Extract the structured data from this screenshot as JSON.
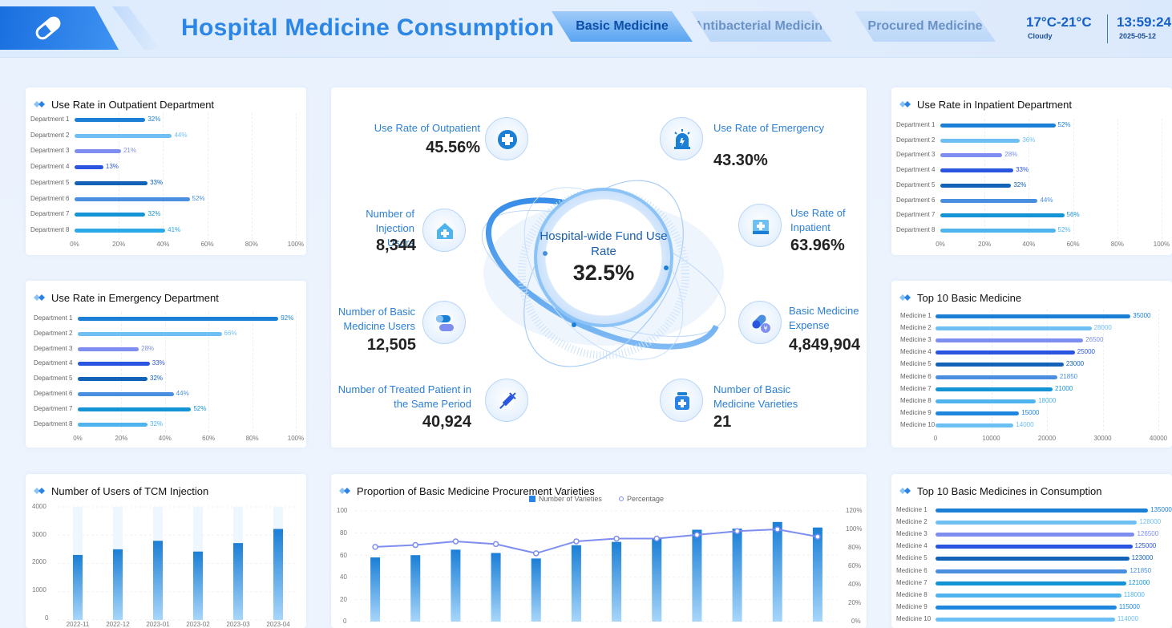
{
  "header": {
    "title": "Hospital Medicine Consumption",
    "tabs": [
      {
        "label": "Basic Medicine",
        "active": true
      },
      {
        "label": "Antibacterial Medicine",
        "active": false
      },
      {
        "label": "Procured Medicine",
        "active": false
      }
    ],
    "weather": {
      "temp": "17°C-21°C",
      "desc": "Cloudy"
    },
    "clock": {
      "time": "13:59:24",
      "date": "2025-05-12"
    }
  },
  "outpatient": {
    "title": "Use Rate in Outpatient Department",
    "rows": [
      {
        "label": "Department 1",
        "value": 32,
        "value_label": "32%",
        "color": "#1b7fd6"
      },
      {
        "label": "Department 2",
        "value": 44,
        "value_label": "44%",
        "color": "#70bff3"
      },
      {
        "label": "Department 3",
        "value": 21,
        "value_label": "21%",
        "color": "#7d8ef0"
      },
      {
        "label": "Department 4",
        "value": 13,
        "value_label": "13%",
        "color": "#2a55e0"
      },
      {
        "label": "Department 5",
        "value": 33,
        "value_label": "33%",
        "color": "#1262b8"
      },
      {
        "label": "Department 6",
        "value": 52,
        "value_label": "52%",
        "color": "#4a8fdf"
      },
      {
        "label": "Department 7",
        "value": 32,
        "value_label": "32%",
        "color": "#1494d4"
      },
      {
        "label": "Department 8",
        "value": 41,
        "value_label": "41%",
        "color": "#2aa9e6"
      }
    ],
    "ticks": [
      "0%",
      "20%",
      "40%",
      "60%",
      "80%",
      "100%"
    ]
  },
  "emergency": {
    "title": "Use Rate in Emergency Department",
    "rows": [
      {
        "label": "Department 1",
        "value": 92,
        "value_label": "92%",
        "color": "#1b7fd6"
      },
      {
        "label": "Department 2",
        "value": 66,
        "value_label": "66%",
        "color": "#70bff3"
      },
      {
        "label": "Department 3",
        "value": 28,
        "value_label": "28%",
        "color": "#7d8ef0"
      },
      {
        "label": "Department 4",
        "value": 33,
        "value_label": "33%",
        "color": "#2a55e0"
      },
      {
        "label": "Department 5",
        "value": 32,
        "value_label": "32%",
        "color": "#1262b8"
      },
      {
        "label": "Department 6",
        "value": 44,
        "value_label": "44%",
        "color": "#4a8fdf"
      },
      {
        "label": "Department 7",
        "value": 52,
        "value_label": "52%",
        "color": "#1494d4"
      },
      {
        "label": "Department 8",
        "value": 32,
        "value_label": "32%",
        "color": "#4fb4ee"
      }
    ],
    "ticks": [
      "0%",
      "20%",
      "40%",
      "60%",
      "80%",
      "100%"
    ]
  },
  "inpatient": {
    "title": "Use Rate in Inpatient Department",
    "rows": [
      {
        "label": "Department 1",
        "value": 52,
        "value_label": "52%",
        "color": "#1b7fd6"
      },
      {
        "label": "Department 2",
        "value": 36,
        "value_label": "36%",
        "color": "#70bff3"
      },
      {
        "label": "Department 3",
        "value": 28,
        "value_label": "28%",
        "color": "#7d8ef0"
      },
      {
        "label": "Department 4",
        "value": 33,
        "value_label": "33%",
        "color": "#2a55e0"
      },
      {
        "label": "Department 5",
        "value": 32,
        "value_label": "32%",
        "color": "#1262b8"
      },
      {
        "label": "Department 6",
        "value": 44,
        "value_label": "44%",
        "color": "#4a8fdf"
      },
      {
        "label": "Department 7",
        "value": 56,
        "value_label": "56%",
        "color": "#1494d4"
      },
      {
        "label": "Department 8",
        "value": 52,
        "value_label": "52%",
        "color": "#4fb4ee"
      }
    ],
    "ticks": [
      "0%",
      "20%",
      "40%",
      "60%",
      "80%",
      "100%"
    ]
  },
  "top10": {
    "title": "Top 10 Basic Medicine",
    "max": 40000,
    "rows": [
      {
        "label": "Medicine 1",
        "value": 35000,
        "value_label": "35000",
        "color": "#1b7fd6"
      },
      {
        "label": "Medicine 2",
        "value": 28000,
        "value_label": "28000",
        "color": "#70bff3"
      },
      {
        "label": "Medicine 3",
        "value": 26500,
        "value_label": "26500",
        "color": "#7d8ef0"
      },
      {
        "label": "Medicine 4",
        "value": 25000,
        "value_label": "25000",
        "color": "#2a55e0"
      },
      {
        "label": "Medicine 5",
        "value": 23000,
        "value_label": "23000",
        "color": "#1262b8"
      },
      {
        "label": "Medicine 6",
        "value": 21850,
        "value_label": "21850",
        "color": "#4a8fdf"
      },
      {
        "label": "Medicine 7",
        "value": 21000,
        "value_label": "21000",
        "color": "#1494d4"
      },
      {
        "label": "Medicine 8",
        "value": 18000,
        "value_label": "18000",
        "color": "#4fb4ee"
      },
      {
        "label": "Medicine 9",
        "value": 15000,
        "value_label": "15000",
        "color": "#1f86e0"
      },
      {
        "label": "Medicine 10",
        "value": 14000,
        "value_label": "14000",
        "color": "#6cc0f4"
      }
    ],
    "ticks": [
      "0",
      "10000",
      "20000",
      "30000",
      "40000"
    ]
  },
  "top10consumption": {
    "title": "Top 10 Basic Medicines in Consumption",
    "rows": [
      {
        "label": "Medicine 1",
        "value_label": "135000",
        "color": "#1b7fd6"
      },
      {
        "label": "Medicine 2",
        "value_label": "128000",
        "color": "#70bff3"
      },
      {
        "label": "Medicine 3",
        "value_label": "126500",
        "color": "#7d8ef0"
      },
      {
        "label": "Medicine 4",
        "value_label": "125000",
        "color": "#2a55e0"
      },
      {
        "label": "Medicine 5",
        "value_label": "123000",
        "color": "#1262b8"
      },
      {
        "label": "Medicine 6",
        "value_label": "121850",
        "color": "#4a8fdf"
      },
      {
        "label": "Medicine 7",
        "value_label": "121000",
        "color": "#1494d4"
      },
      {
        "label": "Medicine 8",
        "value_label": "118000",
        "color": "#4fb4ee"
      },
      {
        "label": "Medicine 9",
        "value_label": "115000",
        "color": "#1f86e0"
      },
      {
        "label": "Medicine 10",
        "value_label": "114000",
        "color": "#6cc0f4"
      }
    ],
    "values": [
      135000,
      128000,
      126500,
      125000,
      123000,
      121850,
      121000,
      118000,
      115000,
      114000
    ],
    "max": 140000
  },
  "center": {
    "hub_label": "Hospital-wide Fund Use Rate",
    "hub_value": "32.5%",
    "kpis": {
      "outpatient_label": "Use Rate of Outpatient",
      "outpatient_value": "45.56%",
      "emergency_label": "Use Rate of Emergency",
      "emergency_value": "43.30%",
      "injection_label": "Number of Injection Users",
      "injection_value": "8,344",
      "inpatient_label": "Use Rate of Inpatient",
      "inpatient_value": "63.96%",
      "basic_users_label": "Number of Basic Medicine Users",
      "basic_users_value": "12,505",
      "expense_label": "Basic Medicine Expense",
      "expense_value": "4,849,904",
      "treated_label": "Number of Treated Patient in the Same Period",
      "treated_value": "40,924",
      "varieties_label": "Number of Basic Medicine Varieties",
      "varieties_value": "21"
    }
  },
  "tcm": {
    "title": "Number of Users of TCM Injection",
    "y_ticks": [
      "4000",
      "3000",
      "2000",
      "1000",
      "0"
    ]
  },
  "procurement": {
    "title": "Proportion of Basic Medicine Procurement Varieties",
    "legend_bar": "Number of Varieties",
    "legend_line": "Percentage",
    "y_left_ticks": [
      "100",
      "80",
      "60",
      "40",
      "20",
      "0"
    ],
    "y_right_ticks": [
      "120%",
      "100%",
      "80%",
      "60%",
      "40%",
      "20%",
      "0%"
    ]
  },
  "chart_data": [
    {
      "type": "bar",
      "title": "Number of Users of TCM Injection",
      "categories": [
        "2022-11",
        "2022-12",
        "2023-01",
        "2023-02",
        "2023-03",
        "2023-04"
      ],
      "values": [
        2300,
        2500,
        2800,
        2420,
        2720,
        3220
      ],
      "ylim": [
        0,
        4000
      ]
    },
    {
      "type": "bar",
      "title": "Proportion of Basic Medicine Procurement Varieties",
      "series": [
        {
          "name": "Number of Varieties",
          "values": [
            58,
            60,
            65,
            62,
            57,
            69,
            72,
            75,
            83,
            84,
            90,
            85
          ]
        },
        {
          "name": "Percentage",
          "values": [
            81,
            83,
            87,
            84,
            74,
            87,
            90,
            90,
            94,
            98,
            100,
            92
          ]
        }
      ],
      "ylim": [
        0,
        100
      ],
      "y2lim": [
        0,
        120
      ]
    }
  ]
}
